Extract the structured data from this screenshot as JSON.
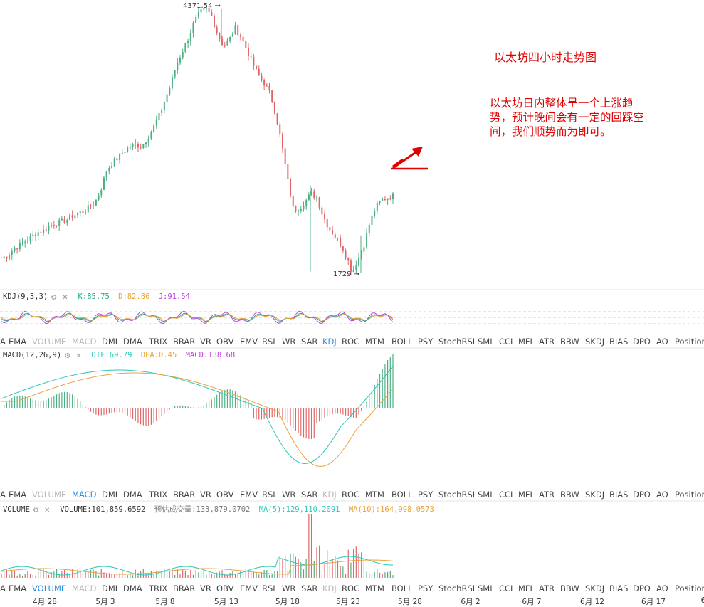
{
  "chart_data": {
    "type": "candlestick",
    "title": "",
    "price_labels": {
      "high": "4371.54",
      "low": "1729"
    },
    "x_axis_dates": [
      "4月 28",
      "5月 3",
      "5月 8",
      "5月 13",
      "5月 18",
      "5月 23",
      "5月 28",
      "6月 2",
      "6月 7",
      "6月 12",
      "6月 17",
      "6"
    ],
    "price_series": [
      1880,
      1890,
      1960,
      2000,
      2040,
      2080,
      2130,
      2140,
      2190,
      2220,
      2230,
      2250,
      2290,
      2320,
      2340,
      2380,
      2430,
      2560,
      2750,
      2830,
      2880,
      2950,
      2990,
      3010,
      2990,
      3080,
      3180,
      3300,
      3460,
      3620,
      3820,
      3950,
      4080,
      4240,
      4330,
      4371,
      4290,
      4110,
      4000,
      4060,
      4180,
      4090,
      3960,
      3820,
      3700,
      3620,
      3520,
      3300,
      3000,
      2650,
      2350,
      2380,
      2440,
      2520,
      2480,
      2300,
      2180,
      2100,
      2020,
      1900,
      1729,
      1860,
      2000,
      2220,
      2380,
      2450,
      2480,
      2500
    ],
    "candle_colors": {
      "up": "#4caf82",
      "down": "#e06666"
    },
    "indicators": {
      "kdj": {
        "label": "KDJ(9,3,3)",
        "K": "K:85.75",
        "D": "D:82.86",
        "J": "J:91.54",
        "colors": {
          "K": "#22aa88",
          "D": "#e8a33c",
          "J": "#c040e0"
        }
      },
      "macd": {
        "label": "MACD(12,26,9)",
        "DIF": "DIF:69.79",
        "DEA": "DEA:0.45",
        "MACD": "MACD:138.68",
        "colors": {
          "DIF": "#2dc6b8",
          "DEA": "#e8a33c"
        }
      },
      "volume": {
        "label": "VOLUME",
        "VOLUME": "VOLUME:101,859.6592",
        "est": "预估成交量:133,879.0702",
        "MA5": "MA(5):129,110.2091",
        "MA10": "MA(10):164,998.0573",
        "colors": {
          "MA5": "#2dc6b8",
          "MA10": "#e8a33c"
        }
      }
    }
  },
  "annotation": {
    "title": "以太坊四小时走势图",
    "body_line1": "以太坊日内整体呈一个上涨趋",
    "body_line2": "势，预计晚间会有一定的回踩空",
    "body_line3": "间，我们顺势而为即可。",
    "color": "#e00000"
  },
  "indicator_tabs": [
    "A",
    "EMA",
    "VOLUME",
    "MACD",
    "DMI",
    "DMA",
    "TRIX",
    "BRAR",
    "VR",
    "OBV",
    "EMV",
    "RSI",
    "WR",
    "SAR",
    "KDJ",
    "ROC",
    "MTM",
    "BOLL",
    "PSY",
    "StochRSI",
    "SMI",
    "CCI",
    "MFI",
    "ATR",
    "BBW",
    "SKDJ",
    "BIAS",
    "DPO",
    "AO",
    "Position"
  ],
  "toolbars": [
    {
      "active": "KDJ",
      "muted": [
        "VOLUME",
        "MACD"
      ]
    },
    {
      "active": "MACD",
      "muted": [
        "VOLUME",
        "KDJ"
      ]
    },
    {
      "active": "VOLUME",
      "muted": [
        "MACD",
        "KDJ"
      ]
    }
  ],
  "colors": {
    "up": "#4caf82",
    "down": "#e06666",
    "active_tab": "#2f8ddf"
  }
}
